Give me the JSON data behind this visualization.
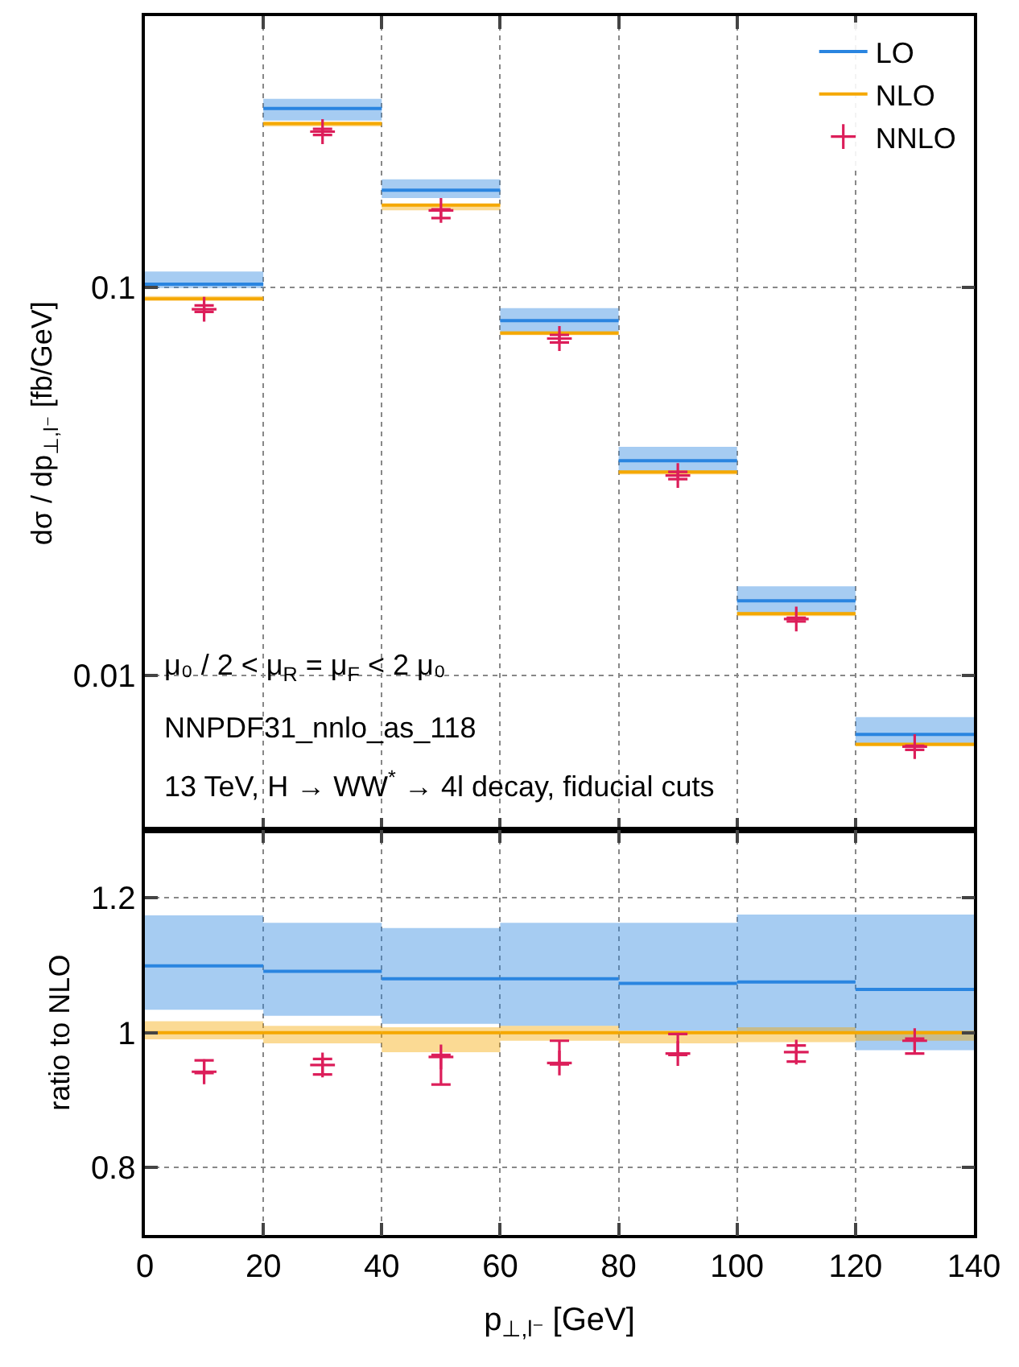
{
  "chart_data": [
    {
      "type": "step",
      "ylabel": "dσ / dp$_{⊥,l⁻}$ [fb/GeV]",
      "series": [
        {
          "name": "LO",
          "color": "#2a85e0",
          "x": [
            0,
            20,
            40,
            60,
            80,
            100,
            120,
            140
          ],
          "values": [
            0.102,
            0.289,
            0.178,
            0.0822,
            0.0358,
            0.0156,
            0.00706,
            0.00706
          ],
          "lower": [
            0.0997,
            0.269,
            0.17,
            0.0766,
            0.0333,
            0.0145,
            0.00666,
            0.00666
          ],
          "upper": [
            0.11,
            0.306,
            0.19,
            0.0885,
            0.0389,
            0.017,
            0.00783,
            0.00783
          ]
        },
        {
          "name": "NLO",
          "color": "#f5a800",
          "x": [
            0,
            20,
            40,
            60,
            80,
            100,
            120,
            140
          ],
          "values": [
            0.0935,
            0.2645,
            0.163,
            0.0763,
            0.0335,
            0.01445,
            0.00666,
            0.00666
          ],
          "lower": [
            0.0926,
            0.26,
            0.158,
            0.0754,
            0.033,
            0.01425,
            0.00658,
            0.00658
          ],
          "upper": [
            0.0951,
            0.267,
            0.164,
            0.0771,
            0.0336,
            0.01457,
            0.00668,
            0.00668
          ]
        },
        {
          "name": "NNLO",
          "type": "scatter",
          "marker": "cross",
          "color": "#dc1e5a",
          "x": [
            10,
            30,
            50,
            70,
            90,
            110,
            130
          ],
          "values": [
            0.0879,
            0.252,
            0.158,
            0.0739,
            0.0328,
            0.014,
            0.00657
          ],
          "errors": [
            [
              0.0865,
              0.0899
            ],
            [
              0.247,
              0.256
            ],
            [
              0.151,
              0.159
            ],
            [
              0.0722,
              0.0755
            ],
            [
              0.0321,
              0.0335
            ],
            [
              0.0138,
              0.0141
            ],
            [
              0.00645,
              0.0066
            ]
          ]
        }
      ],
      "xlim": [
        0,
        140
      ],
      "xticks": [
        0,
        20,
        40,
        60,
        80,
        100,
        120,
        140
      ],
      "ylim": [
        0.004,
        0.5
      ],
      "yticks": [
        0.01,
        0.1
      ],
      "log": true,
      "grid": true,
      "legend": "top right",
      "tick_labels": "y",
      "annotations": [
        "μ₀ / 2 < μ$_{R}$ = μ$_{F}$ < 2 μ₀",
        "NNPDF31_nnlo_as_118",
        "13 TeV, H → WW$^{*}$ → 4l decay, fiducial cuts"
      ]
    },
    {
      "type": "step",
      "xlabel": "p$_{⊥,l⁻}$ [GeV]",
      "ylabel": "ratio to NLO",
      "series": [
        {
          "color": "#2a85e0",
          "x": [
            0,
            20,
            40,
            60,
            80,
            100,
            120,
            140
          ],
          "values": [
            1.099,
            1.091,
            1.08,
            1.08,
            1.073,
            1.075,
            1.064,
            1.064
          ],
          "lower": [
            1.034,
            1.025,
            1.013,
            1.01,
            1.003,
            1.0,
            0.974,
            0.974
          ],
          "upper": [
            1.174,
            1.163,
            1.155,
            1.163,
            1.163,
            1.175,
            1.175,
            1.175
          ]
        },
        {
          "color": "#f5a800",
          "x": [
            0,
            20,
            40,
            60,
            80,
            100,
            120,
            140
          ],
          "values": [
            1,
            1,
            1,
            1,
            1,
            1,
            1,
            1
          ],
          "lower": [
            0.99,
            0.984,
            0.971,
            0.988,
            0.984,
            0.986,
            0.988,
            0.988
          ],
          "upper": [
            1.017,
            1.01,
            1.008,
            1.01,
            1.003,
            1.008,
            1.003,
            1.003
          ]
        },
        {
          "type": "scatter",
          "marker": "cross",
          "color": "#dc1e5a",
          "x": [
            10,
            30,
            50,
            70,
            90,
            110,
            130
          ],
          "values": [
            0.942,
            0.952,
            0.964,
            0.955,
            0.969,
            0.971,
            0.988
          ],
          "errors": [
            [
              0.94,
              0.959
            ],
            [
              0.938,
              0.961
            ],
            [
              0.923,
              0.967
            ],
            [
              0.953,
              0.988
            ],
            [
              0.967,
              0.998
            ],
            [
              0.957,
              0.981
            ],
            [
              0.969,
              0.991
            ]
          ]
        }
      ],
      "xlim": [
        0,
        140
      ],
      "xticks": [
        0,
        20,
        40,
        60,
        80,
        100,
        120,
        140
      ],
      "ylim": [
        0.7,
        1.3
      ],
      "yticks": [
        0.8,
        1,
        1.2
      ],
      "grid": true
    }
  ]
}
